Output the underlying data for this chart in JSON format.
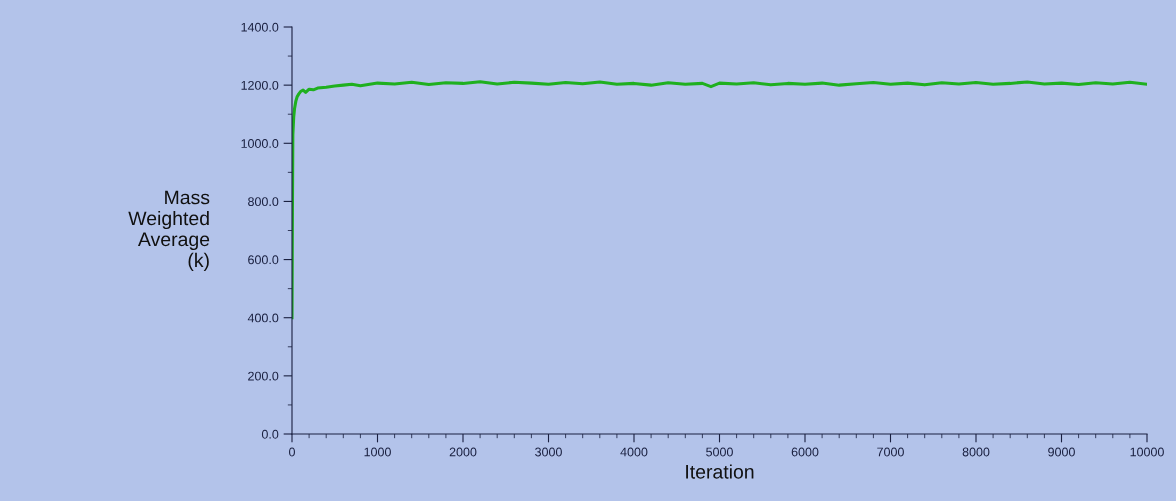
{
  "chart_data": {
    "type": "line",
    "xlabel": "Iteration",
    "ylabel": "Mass\nWeighted\nAverage\n(k)",
    "x": [
      0,
      5,
      10,
      20,
      30,
      45,
      60,
      80,
      100,
      130,
      160,
      200,
      250,
      300,
      400,
      500,
      600,
      700,
      800,
      1000,
      1200,
      1400,
      1600,
      1800,
      2000,
      2200,
      2400,
      2600,
      2800,
      3000,
      3200,
      3400,
      3600,
      3800,
      4000,
      4200,
      4400,
      4600,
      4800,
      4900,
      5000,
      5200,
      5400,
      5600,
      5800,
      6000,
      6200,
      6400,
      6600,
      6800,
      7000,
      7200,
      7400,
      7600,
      7800,
      8000,
      8200,
      8400,
      8600,
      8800,
      9000,
      9200,
      9400,
      9600,
      9800,
      10000
    ],
    "series": [
      {
        "color": "#1fb01f",
        "values": [
          400,
          760,
          1030,
          1090,
          1120,
          1145,
          1160,
          1170,
          1178,
          1183,
          1175,
          1186,
          1184,
          1190,
          1193,
          1197,
          1200,
          1203,
          1198,
          1207,
          1204,
          1210,
          1202,
          1208,
          1206,
          1212,
          1204,
          1210,
          1207,
          1203,
          1209,
          1205,
          1211,
          1203,
          1206,
          1200,
          1208,
          1203,
          1206,
          1195,
          1207,
          1204,
          1208,
          1201,
          1206,
          1203,
          1207,
          1200,
          1205,
          1209,
          1203,
          1207,
          1201,
          1208,
          1204,
          1209,
          1203,
          1206,
          1211,
          1204,
          1207,
          1202,
          1208,
          1204,
          1210,
          1203
        ]
      }
    ],
    "xlim": [
      0,
      10000
    ],
    "xticks": [
      0,
      1000,
      2000,
      3000,
      4000,
      5000,
      6000,
      7000,
      8000,
      9000,
      10000
    ],
    "ylim": [
      0,
      1400
    ],
    "yticks": [
      {
        "value": 0,
        "label": "0.0"
      },
      {
        "value": 200,
        "label": "200.0"
      },
      {
        "value": 400,
        "label": "400.0"
      },
      {
        "value": 600,
        "label": "600.0"
      },
      {
        "value": 800,
        "label": "800.0"
      },
      {
        "value": 1000,
        "label": "1000.0"
      },
      {
        "value": 1200,
        "label": "1200.0"
      },
      {
        "value": 1400,
        "label": "1400.0"
      }
    ],
    "grid": false,
    "legend": false,
    "marker": "none",
    "line_style": "solid"
  }
}
